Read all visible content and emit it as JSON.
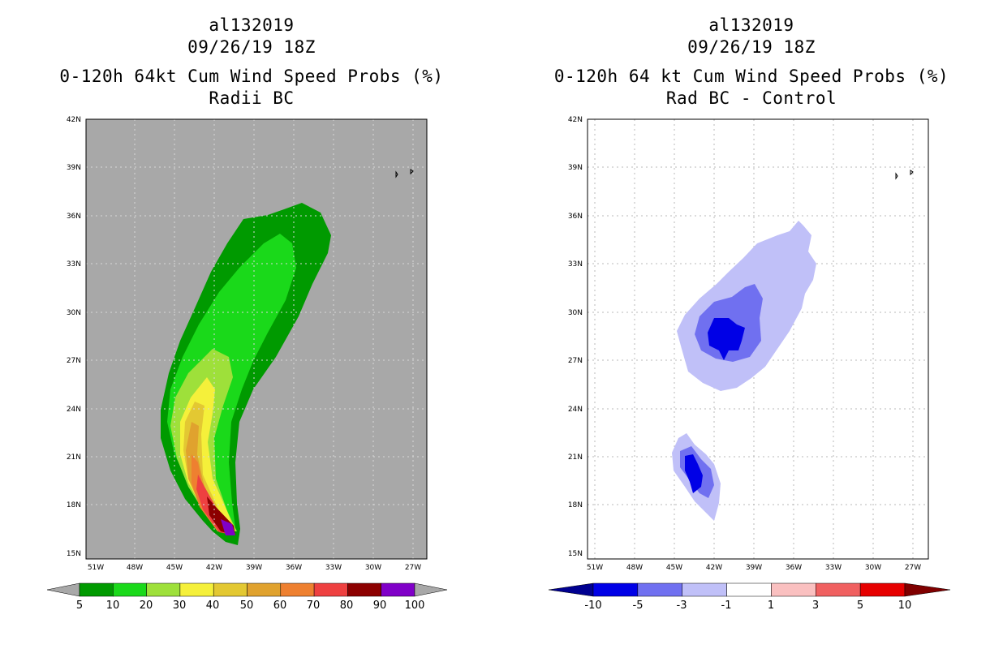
{
  "left_panel": {
    "storm_id": "al132019",
    "datetime": "09/26/19 18Z",
    "product": "0-120h 64kt Cum Wind Speed Probs (%)",
    "subtitle": "Radii BC",
    "lat_labels": [
      "42N",
      "39N",
      "36N",
      "33N",
      "30N",
      "27N",
      "24N",
      "21N",
      "18N",
      "15N"
    ],
    "lon_labels": [
      "51W",
      "48W",
      "45W",
      "42W",
      "39W",
      "36W",
      "33W",
      "30W",
      "27W"
    ],
    "colorbar": {
      "labels": [
        "5",
        "10",
        "20",
        "30",
        "40",
        "50",
        "60",
        "70",
        "80",
        "90",
        "100"
      ],
      "colors": [
        "#009a00",
        "#1ad91a",
        "#9ee03a",
        "#f5f03a",
        "#e3c832",
        "#e0a22e",
        "#ee8030",
        "#ee4040",
        "#8c0000",
        "#8000c8"
      ]
    }
  },
  "right_panel": {
    "storm_id": "al132019",
    "datetime": "09/26/19 18Z",
    "product": "0-120h 64 kt Cum Wind Speed Probs (%)",
    "subtitle": "Rad BC - Control",
    "lat_labels": [
      "42N",
      "39N",
      "36N",
      "33N",
      "30N",
      "27N",
      "24N",
      "21N",
      "18N",
      "15N"
    ],
    "lon_labels": [
      "51W",
      "48W",
      "45W",
      "42W",
      "39W",
      "36W",
      "33W",
      "30W",
      "27W"
    ],
    "colorbar": {
      "labels": [
        "-10",
        "-5",
        "-3",
        "-1",
        "1",
        "3",
        "5",
        "10"
      ],
      "colors": [
        "#0000e6",
        "#7070f0",
        "#c0c0f8",
        "#ffffff",
        "#fac0c0",
        "#f06060",
        "#e60000"
      ],
      "under_color": "#000090",
      "over_color": "#800000"
    }
  }
}
